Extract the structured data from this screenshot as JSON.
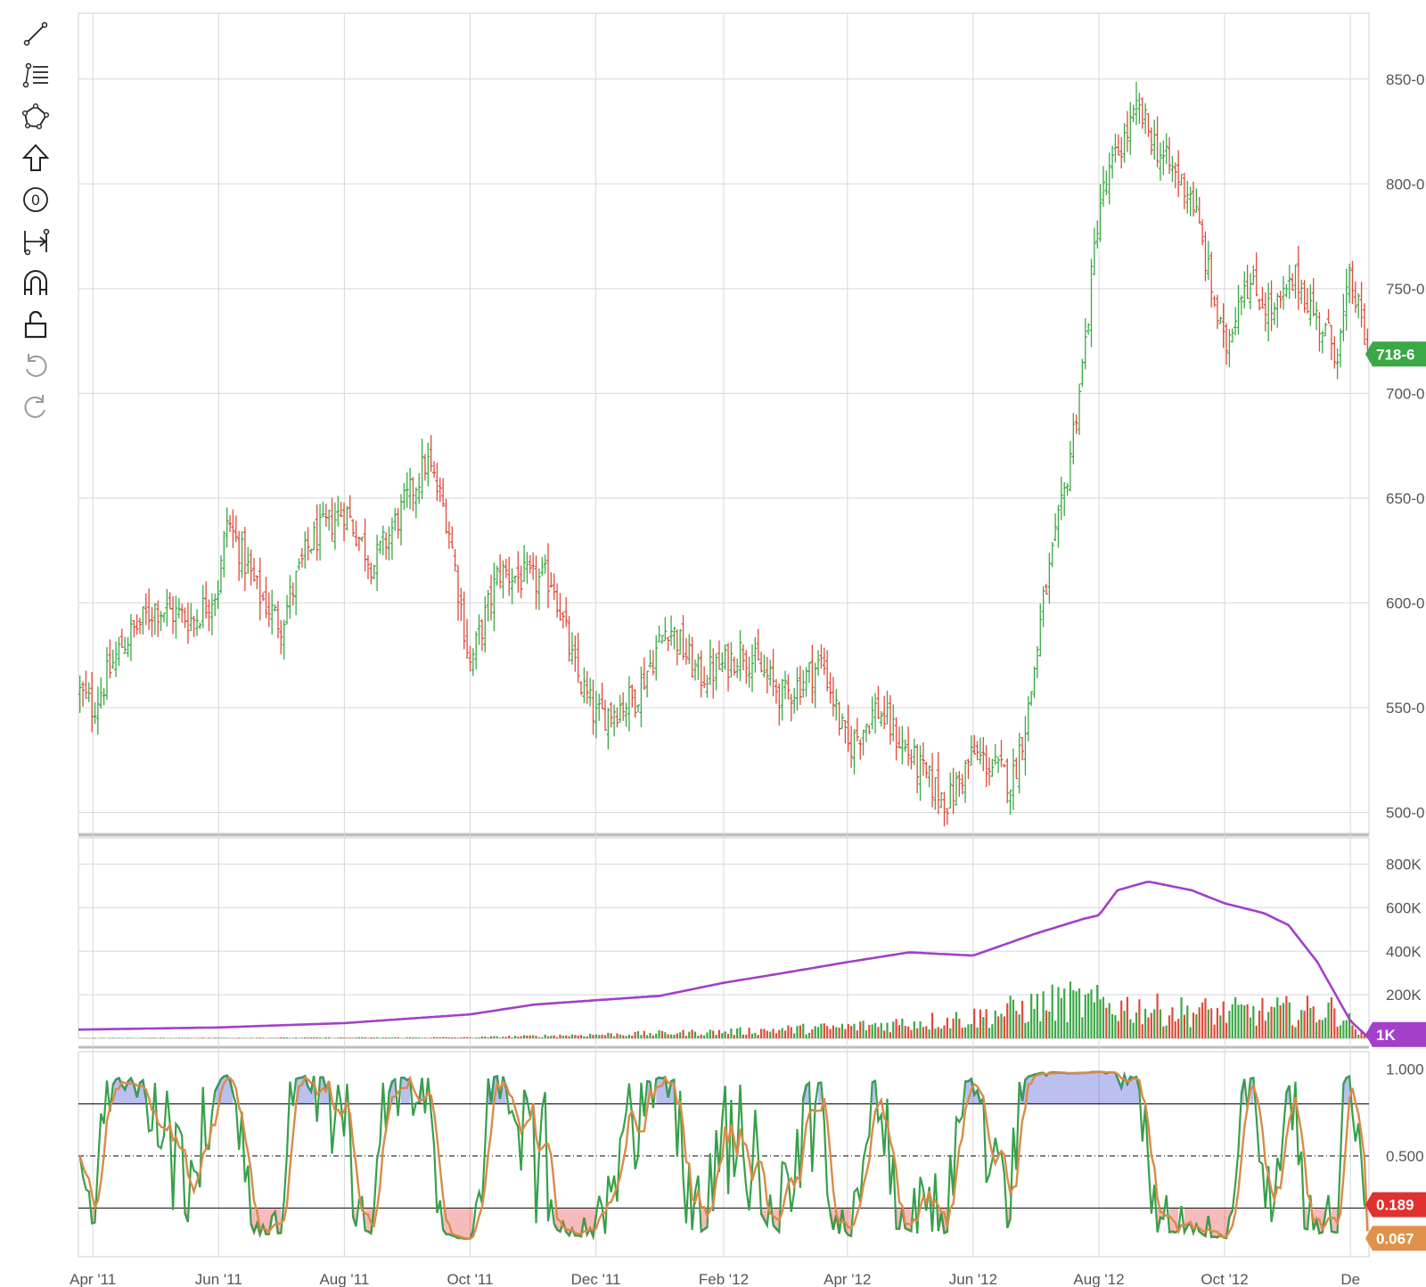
{
  "toolbar": [
    {
      "name": "trend-line-tool-icon"
    },
    {
      "name": "fib-levels-tool-icon"
    },
    {
      "name": "shapes-tool-icon"
    },
    {
      "name": "arrow-up-tool-icon"
    },
    {
      "name": "text-tool-icon",
      "glyph": "0"
    },
    {
      "name": "measure-tool-icon"
    },
    {
      "name": "magnet-icon"
    },
    {
      "name": "unlock-icon"
    },
    {
      "name": "undo-icon"
    },
    {
      "name": "redo-icon"
    }
  ],
  "colors": {
    "up": "#3aa845",
    "down": "#e04a3a",
    "oi_line": "#a33fc9",
    "stoch_k": "#37a04a",
    "stoch_d": "#d98b48",
    "overbought": "#1f2fc9",
    "oversold": "#e02020",
    "grid": "#d8d8d8",
    "price_badge": "#3aa845",
    "oi_badge": "#a33fc9",
    "k_badge": "#e03030",
    "d_badge": "#e0924a"
  },
  "chart_data": [
    {
      "type": "candlestick",
      "x_range": [
        "2011-03-25",
        "2012-12-10"
      ],
      "ylim": [
        490,
        875
      ],
      "y_ticks": [
        500,
        550,
        600,
        650,
        700,
        750,
        800,
        850
      ],
      "y_tick_labels": [
        "500-0",
        "550-0",
        "600-0",
        "650-0",
        "700-0",
        "750-0",
        "800-0",
        "850-0"
      ],
      "x_tick_labels": [
        "Apr '11",
        "Jun '11",
        "Aug '11",
        "Oct '11",
        "Dec '11",
        "Feb '12",
        "Apr '12",
        "Jun '12",
        "Aug '12",
        "Oct '12",
        "De"
      ],
      "x_tick_dates": [
        "2011-04-01",
        "2011-06-01",
        "2011-08-01",
        "2011-10-01",
        "2011-12-01",
        "2012-02-01",
        "2012-04-01",
        "2012-06-01",
        "2012-08-01",
        "2012-10-01",
        "2012-12-01"
      ],
      "close_path": [
        [
          "2011-03-25",
          558
        ],
        [
          "2011-04-01",
          550
        ],
        [
          "2011-04-15",
          580
        ],
        [
          "2011-05-01",
          598
        ],
        [
          "2011-05-20",
          592
        ],
        [
          "2011-06-01",
          608
        ],
        [
          "2011-06-05",
          640
        ],
        [
          "2011-06-20",
          605
        ],
        [
          "2011-07-01",
          590
        ],
        [
          "2011-07-15",
          628
        ],
        [
          "2011-08-01",
          645
        ],
        [
          "2011-08-15",
          618
        ],
        [
          "2011-09-01",
          650
        ],
        [
          "2011-09-10",
          668
        ],
        [
          "2011-09-20",
          640
        ],
        [
          "2011-10-01",
          570
        ],
        [
          "2011-10-15",
          615
        ],
        [
          "2011-11-01",
          610
        ],
        [
          "2011-11-10",
          612
        ],
        [
          "2011-11-20",
          570
        ],
        [
          "2011-12-01",
          545
        ],
        [
          "2011-12-20",
          555
        ],
        [
          "2012-01-05",
          590
        ],
        [
          "2012-01-20",
          565
        ],
        [
          "2012-02-01",
          570
        ],
        [
          "2012-02-10",
          578
        ],
        [
          "2012-03-01",
          555
        ],
        [
          "2012-03-20",
          572
        ],
        [
          "2012-04-01",
          530
        ],
        [
          "2012-04-15",
          550
        ],
        [
          "2012-05-10",
          515
        ],
        [
          "2012-05-20",
          505
        ],
        [
          "2012-06-01",
          528
        ],
        [
          "2012-06-20",
          515
        ],
        [
          "2012-06-28",
          550
        ],
        [
          "2012-07-05",
          600
        ],
        [
          "2012-07-15",
          650
        ],
        [
          "2012-07-25",
          720
        ],
        [
          "2012-08-01",
          790
        ],
        [
          "2012-08-10",
          815
        ],
        [
          "2012-08-20",
          835
        ],
        [
          "2012-09-01",
          812
        ],
        [
          "2012-09-15",
          795
        ],
        [
          "2012-10-01",
          720
        ],
        [
          "2012-10-10",
          755
        ],
        [
          "2012-10-25",
          738
        ],
        [
          "2012-11-05",
          755
        ],
        [
          "2012-11-15",
          735
        ],
        [
          "2012-11-25",
          720
        ],
        [
          "2012-12-01",
          755
        ],
        [
          "2012-12-10",
          718
        ]
      ],
      "last_price_label": "718-6",
      "last_price": 718.75
    },
    {
      "type": "bar+line",
      "ylim": [
        0,
        880000
      ],
      "y_ticks": [
        200000,
        400000,
        600000,
        800000
      ],
      "y_tick_labels": [
        "200K",
        "400K",
        "600K",
        "800K"
      ],
      "volume_level_path": [
        [
          "2011-03-25",
          2000
        ],
        [
          "2011-10-01",
          5000
        ],
        [
          "2011-12-01",
          20000
        ],
        [
          "2012-02-01",
          35000
        ],
        [
          "2012-04-01",
          60000
        ],
        [
          "2012-06-01",
          110000
        ],
        [
          "2012-07-15",
          200000
        ],
        [
          "2012-09-01",
          150000
        ],
        [
          "2012-10-01",
          140000
        ],
        [
          "2012-11-25",
          150000
        ],
        [
          "2012-12-05",
          40000
        ],
        [
          "2012-12-10",
          5000
        ]
      ],
      "open_interest_path": [
        [
          "2011-03-25",
          40000
        ],
        [
          "2011-06-01",
          50000
        ],
        [
          "2011-08-01",
          70000
        ],
        [
          "2011-10-01",
          110000
        ],
        [
          "2011-11-01",
          155000
        ],
        [
          "2011-12-01",
          175000
        ],
        [
          "2012-01-01",
          195000
        ],
        [
          "2012-02-01",
          255000
        ],
        [
          "2012-03-01",
          300000
        ],
        [
          "2012-04-01",
          350000
        ],
        [
          "2012-05-01",
          395000
        ],
        [
          "2012-06-01",
          380000
        ],
        [
          "2012-07-01",
          480000
        ],
        [
          "2012-07-25",
          550000
        ],
        [
          "2012-08-01",
          565000
        ],
        [
          "2012-08-10",
          680000
        ],
        [
          "2012-08-25",
          720000
        ],
        [
          "2012-09-15",
          680000
        ],
        [
          "2012-10-01",
          620000
        ],
        [
          "2012-10-20",
          575000
        ],
        [
          "2012-11-01",
          520000
        ],
        [
          "2012-11-15",
          350000
        ],
        [
          "2012-12-01",
          80000
        ],
        [
          "2012-12-10",
          1000
        ]
      ],
      "last_value_label": "1K"
    },
    {
      "type": "line",
      "ylim": [
        -0.08,
        1.1
      ],
      "y_ticks": [
        0.5,
        1.0
      ],
      "y_tick_labels": [
        "0.500",
        "1.000"
      ],
      "overbought": 0.8,
      "midline": 0.5,
      "oversold": 0.2,
      "k_label": "0.189",
      "k_last": 0.189,
      "d_label": "0.067",
      "d_last": 0.067
    }
  ]
}
